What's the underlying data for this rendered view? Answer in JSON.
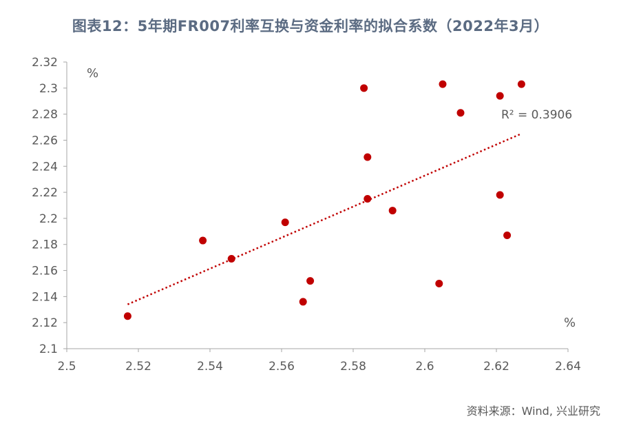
{
  "title": "图表12：5年期FR007利率互换与资金利率的拟合系数（2022年3月）",
  "source": "资料来源：Wind, 兴业研究",
  "colors": {
    "point": "#c00000",
    "trendline": "#c00000",
    "axis": "#a6a6a6",
    "text": "#595959"
  },
  "chart_data": {
    "type": "scatter",
    "x_unit": "%",
    "y_unit": "%",
    "xlim": [
      2.5,
      2.64
    ],
    "ylim": [
      2.1,
      2.32
    ],
    "x_ticks": [
      "2.5",
      "2.52",
      "2.54",
      "2.56",
      "2.58",
      "2.6",
      "2.62",
      "2.64"
    ],
    "y_ticks": [
      "2.32",
      "2.3",
      "2.28",
      "2.26",
      "2.24",
      "2.22",
      "2.2",
      "2.18",
      "2.16",
      "2.14",
      "2.12",
      "2.1"
    ],
    "grid": false,
    "trendline": {
      "type": "linear",
      "from": [
        2.517,
        2.134
      ],
      "to": [
        2.627,
        2.265
      ],
      "label": "R² = 0.3906"
    },
    "points": [
      {
        "x": 2.517,
        "y": 2.125
      },
      {
        "x": 2.538,
        "y": 2.183
      },
      {
        "x": 2.546,
        "y": 2.169
      },
      {
        "x": 2.561,
        "y": 2.197
      },
      {
        "x": 2.566,
        "y": 2.136
      },
      {
        "x": 2.568,
        "y": 2.152
      },
      {
        "x": 2.583,
        "y": 2.3
      },
      {
        "x": 2.584,
        "y": 2.247
      },
      {
        "x": 2.584,
        "y": 2.215
      },
      {
        "x": 2.591,
        "y": 2.206
      },
      {
        "x": 2.604,
        "y": 2.15
      },
      {
        "x": 2.605,
        "y": 2.303
      },
      {
        "x": 2.61,
        "y": 2.281
      },
      {
        "x": 2.621,
        "y": 2.294
      },
      {
        "x": 2.621,
        "y": 2.218
      },
      {
        "x": 2.623,
        "y": 2.187
      },
      {
        "x": 2.627,
        "y": 2.303
      }
    ]
  }
}
